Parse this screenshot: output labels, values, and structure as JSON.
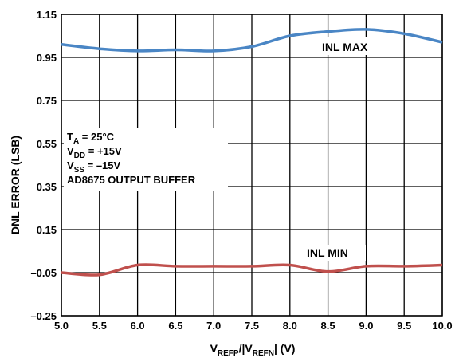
{
  "chart_data": {
    "type": "line",
    "ylabel": "DNL ERROR (LSB)",
    "xlabel": {
      "p1": "V",
      "s1": "REFP",
      "p2": "/|V",
      "s2": "REFN",
      "p3": "| (V)"
    },
    "xlim": [
      5.0,
      10.0
    ],
    "ylim": [
      -0.25,
      1.15
    ],
    "grid": true,
    "x_ticks": [
      "5.0",
      "5.5",
      "6.0",
      "6.5",
      "7.0",
      "7.5",
      "8.0",
      "8.5",
      "9.0",
      "9.5",
      "10.0"
    ],
    "y_ticks": [
      "1.15",
      "0.95",
      "0.75",
      "0.55",
      "0.35",
      "0.15",
      "–0.05",
      "–0.25"
    ],
    "annotation": {
      "line1": {
        "a": "T",
        "sub": "A",
        "b": " = 25°C"
      },
      "line2": {
        "a": "V",
        "sub": "DD",
        "b": " = +15V"
      },
      "line3": {
        "a": "V",
        "sub": "SS",
        "b": " = –15V"
      },
      "line4": "AD8675 OUTPUT BUFFER"
    },
    "series": [
      {
        "name": "INL MAX",
        "color": "#4a86c5",
        "x": [
          5.0,
          5.5,
          6.0,
          6.5,
          7.0,
          7.5,
          8.0,
          8.5,
          9.0,
          9.5,
          10.0
        ],
        "y": [
          1.01,
          0.99,
          0.98,
          0.985,
          0.98,
          1.0,
          1.05,
          1.07,
          1.08,
          1.06,
          1.02
        ]
      },
      {
        "name": "INL MIN",
        "color": "#c0504d",
        "x": [
          5.0,
          5.5,
          6.0,
          6.5,
          7.0,
          7.5,
          8.0,
          8.5,
          9.0,
          9.5,
          10.0
        ],
        "y": [
          -0.05,
          -0.06,
          -0.015,
          -0.02,
          -0.02,
          -0.02,
          -0.015,
          -0.045,
          -0.02,
          -0.02,
          -0.015
        ]
      }
    ]
  }
}
